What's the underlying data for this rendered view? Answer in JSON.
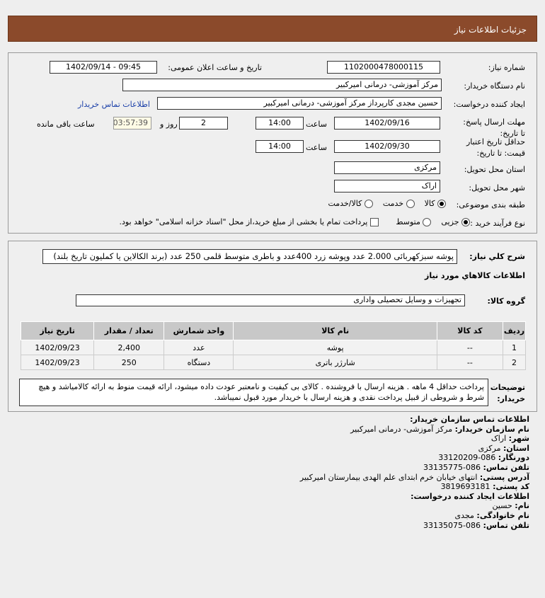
{
  "header": {
    "title": "جزئیات اطلاعات نیاز"
  },
  "form": {
    "need_number_label": "شماره نیاز:",
    "need_number": "1102000478000115",
    "announce_label": "تاریخ و ساعت اعلان عمومی:",
    "announce_value": "1402/09/14 - 09:45",
    "buyer_org_label": "نام دستگاه خریدار:",
    "buyer_org": "مرکز آموزشی- درمانی امیرکبیر",
    "creator_label": "ایجاد کننده درخواست:",
    "creator": "حسین  مجدی کارپرداز مرکز آموزشی- درمانی امیرکبیر",
    "contact_link": "اطلاعات تماس خریدار",
    "deadline_label": "مهلت ارسال پاسخ: تا تاریخ:",
    "deadline_date": "1402/09/16",
    "time_label": "ساعت",
    "deadline_time": "14:00",
    "days": "2",
    "days_label": "روز و",
    "remaining": "03:57:39",
    "remaining_label": "ساعت باقی مانده",
    "validity_label": "حداقل تاریخ اعتبار قیمت: تا تاریخ:",
    "validity_date": "1402/09/30",
    "validity_time": "14:00",
    "province_label": "استان محل تحویل:",
    "province": "مرکزی",
    "city_label": "شهر محل تحویل:",
    "city": "اراک",
    "category_label": "طبقه بندی موضوعی:",
    "category_options": [
      "کالا",
      "خدمت",
      "کالا/خدمت"
    ],
    "category_selected": "کالا",
    "process_label": "نوع فرآیند خرید :",
    "process_options": [
      "جزیی",
      "متوسط"
    ],
    "process_selected": "جزیی",
    "payment_note": "پرداخت تمام یا بخشی از مبلغ خرید،از محل \"اسناد خزانه اسلامی\" خواهد بود."
  },
  "details": {
    "desc_label": "شرح کلي نياز:",
    "desc": "پوشه سبزکهربائی 2.000 عدد وپوشه زرد 400عدد و باطری متوسط قلمی 250 عدد (برند الکالاین یا کملیون تاریخ بلند)",
    "goods_heading": "اطلاعات کالاهاي مورد نياز",
    "group_label": "گروه کالا:",
    "group": "تجهیزات و وسایل تحصیلی واداری",
    "table": {
      "headers": [
        "ردیف",
        "کد کالا",
        "نام کالا",
        "واحد شمارش",
        "تعداد / مقدار",
        "تاریخ نیاز"
      ],
      "rows": [
        [
          "1",
          "--",
          "پوشه",
          "عدد",
          "2,400",
          "1402/09/23"
        ],
        [
          "2",
          "--",
          "شارژر باتری",
          "دستگاه",
          "250",
          "1402/09/23"
        ]
      ]
    },
    "notes_label": "توضیحات خریدار:",
    "notes": "پرداخت حداقل 4 ماهه . هزینه ارسال با فروشنده . کالای بی کیفیت و نامعتبر عودت داده میشود، ارائه قیمت منوط به ارائه کالامیاشد و هیچ شرط و شروطی از قبیل پرداخت نقدی و هزینه ارسال با خریدار مورد قبول نمیباشد."
  },
  "contact": {
    "org_heading": "اطلاعات تماس سازمان خریدار:",
    "lines": [
      [
        "نام سازمان خریدار:",
        "مرکز آموزشی- درمانی امیرکبیر"
      ],
      [
        "شهر:",
        "اراک"
      ],
      [
        "استان:",
        "مرکزی"
      ],
      [
        "دورنگار:",
        "086-33120209"
      ],
      [
        "تلفن تماس:",
        "086-33135775"
      ],
      [
        "آدرس پستی:",
        "انتهای خیابان خرم ابتدای علم الهدی بیمارستان امیرکبیر"
      ],
      [
        "کد پستی:",
        "3819693181"
      ]
    ],
    "creator_heading": "اطلاعات ایجاد کننده درخواست:",
    "creator_lines": [
      [
        "نام:",
        "حسین"
      ],
      [
        "نام خانوادگی:",
        "مجدی"
      ],
      [
        "تلفن تماس:",
        "086-33135075"
      ]
    ]
  }
}
